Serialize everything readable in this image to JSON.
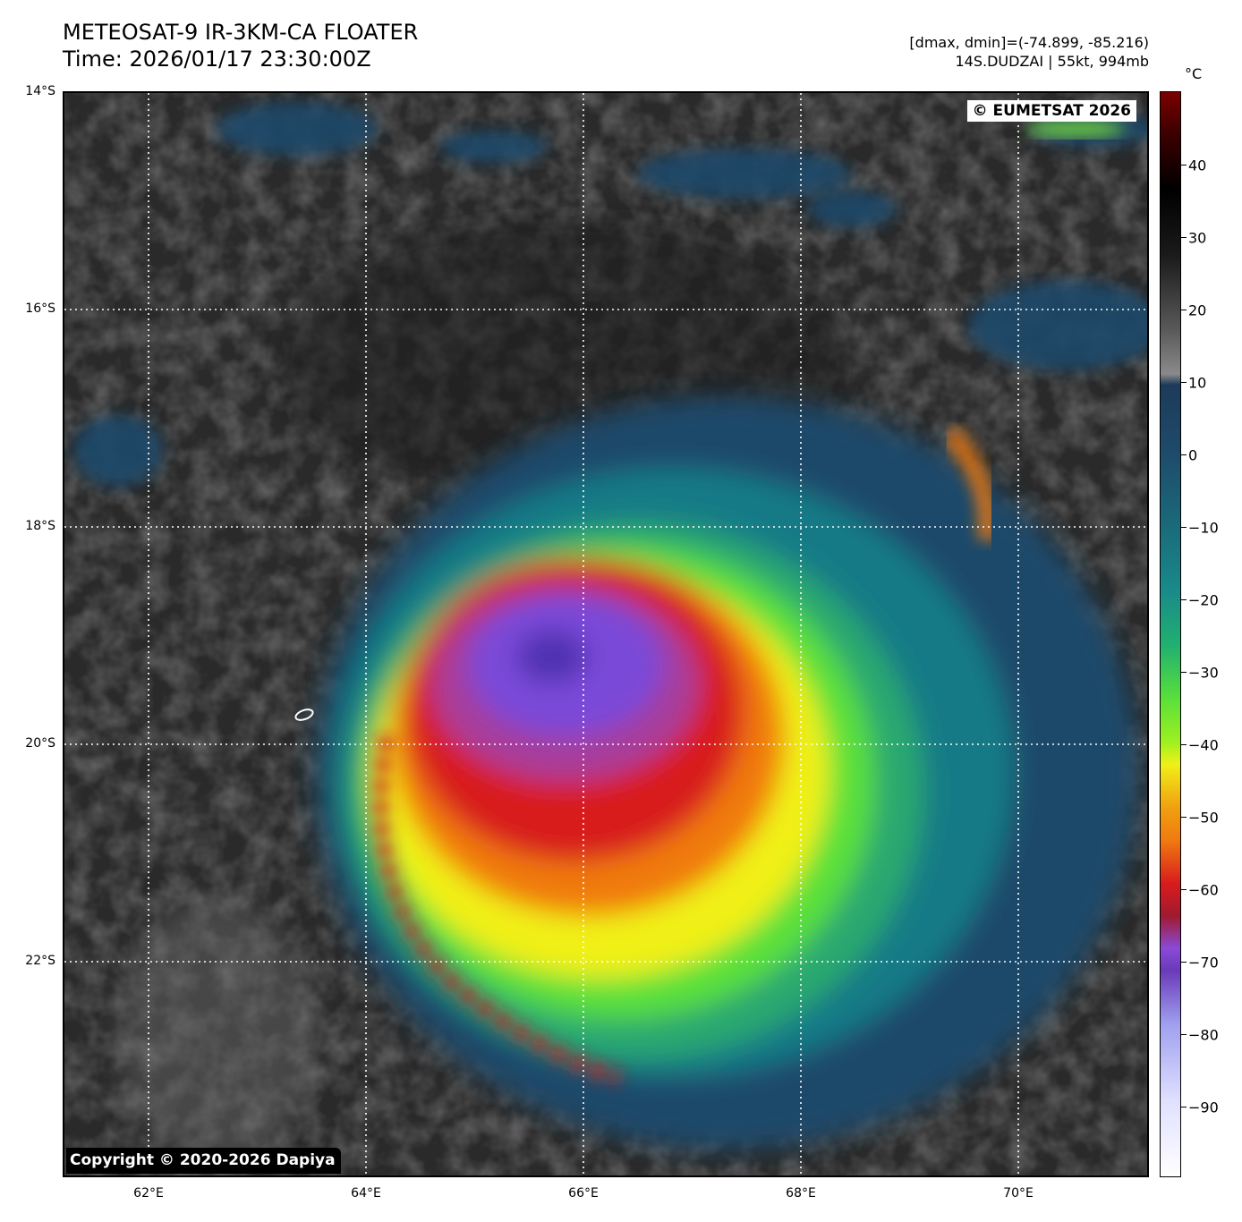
{
  "header": {
    "title_line1": "METEOSAT-9 IR-3KM-CA FLOATER",
    "title_line2": "Time: 2026/01/17 23:30:00Z",
    "info_line1": "[dmax, dmin]=(-74.899, -85.216)",
    "info_line2": "14S.DUDZAI | 55kt, 994mb"
  },
  "map": {
    "lat_labels": [
      "14°S",
      "16°S",
      "18°S",
      "20°S",
      "22°S"
    ],
    "lon_labels": [
      "62°E",
      "64°E",
      "66°E",
      "68°E",
      "70°E"
    ],
    "grid": "dotted white",
    "copyright_top": "© EUMETSAT 2026",
    "copyright_bottom": "Copyright © 2020-2026 Dapiya",
    "storm_name": "14S.DUDZAI"
  },
  "colorbar": {
    "unit": "°C",
    "ticks": [
      "40",
      "30",
      "20",
      "10",
      "0",
      "−10",
      "−20",
      "−30",
      "−40",
      "−50",
      "−60",
      "−70",
      "−80",
      "−90"
    ],
    "range": [
      -100,
      50
    ]
  },
  "colors": {
    "background_cloud": "#2e2e2e",
    "cold_blue": "#1e4a6a",
    "teal": "#1a8a8a",
    "green": "#5ae03a",
    "yellow": "#f0f018",
    "orange": "#f07a10",
    "red": "#d81c1c",
    "purple": "#7a4ad8"
  }
}
